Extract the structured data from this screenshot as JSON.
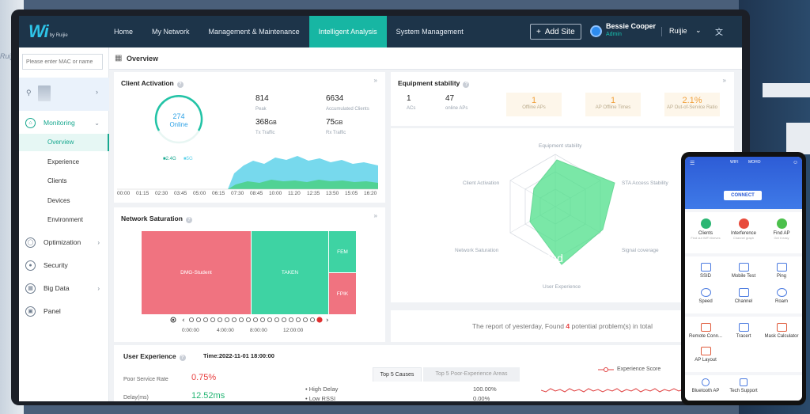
{
  "nav": {
    "logo": "Wi",
    "logo_sub": "by Ruijie",
    "items": [
      "Home",
      "My Network",
      "Management & Maintenance",
      "Intelligent Analysis",
      "System Management"
    ],
    "active_index": 3,
    "add_site": "Add Site",
    "user_name": "Bessie Cooper",
    "user_role": "Admin",
    "brand": "Ruijie"
  },
  "sidebar": {
    "search_placeholder": "Please enter MAC or name",
    "items": [
      {
        "label": "Monitoring",
        "icon": "monitor-icon"
      },
      {
        "label": "Optimization",
        "icon": "optimization-icon"
      },
      {
        "label": "Security",
        "icon": "security-icon"
      },
      {
        "label": "Big Data",
        "icon": "big-data-icon"
      },
      {
        "label": "Panel",
        "icon": "panel-icon"
      }
    ],
    "sub_items": [
      "Overview",
      "Experience",
      "Clients",
      "Devices",
      "Environment"
    ]
  },
  "page": {
    "title": "Overview"
  },
  "client_activation": {
    "title": "Client Activation",
    "online": "274",
    "online_label": "Online",
    "legend_24": "2.4G",
    "legend_5": "5G",
    "peak": "814",
    "peak_label": "Peak",
    "accumulated": "6634",
    "accumulated_label": "Accumulated Clients",
    "tx": "368",
    "tx_unit": "GB",
    "tx_label": "Tx Traffic",
    "rx": "75",
    "rx_unit": "GB",
    "rx_label": "Rx Traffic",
    "times": [
      "00:00",
      "01:15",
      "02:30",
      "03:45",
      "05:00",
      "06:15",
      "07:30",
      "08:45",
      "10:00",
      "11:20",
      "12:35",
      "13:50",
      "15:05",
      "16:20"
    ],
    "colors": {
      "g24": "#4cd08a",
      "g5": "#5fd2ea"
    }
  },
  "equipment": {
    "title": "Equipment stability",
    "acs": "1",
    "acs_label": "ACs",
    "online_aps": "47",
    "online_aps_label": "online APs",
    "boxes": [
      {
        "value": "1",
        "label": "Offline APs"
      },
      {
        "value": "1",
        "label": "AP Offline Times"
      },
      {
        "value": "2.1%",
        "label": "AP Out-of-Service Ratio"
      }
    ],
    "radar_labels": [
      "Equipment stability",
      "STA Access Stability",
      "Signal coverage",
      "User Experience",
      "Network Saturation",
      "Client Activation"
    ],
    "status": "Bad"
  },
  "saturation": {
    "title": "Network Saturation",
    "cells": [
      "DMG-Student",
      "TAKEN",
      "FEM",
      "FPIK"
    ],
    "times": [
      "0:00:00",
      "4:00:00",
      "8:00:00",
      "12:00:00"
    ],
    "colors": {
      "red": "#f07380",
      "green": "#3ed3a3"
    }
  },
  "report": {
    "prefix": "The report of yesterday, Found",
    "count": "4",
    "suffix": "potential problem(s) in total"
  },
  "user_experience": {
    "title": "User Experience",
    "time": "Time:2022-11-01 18:00:00",
    "poor_rate_label": "Poor Service Rate",
    "poor_rate": "0.75%",
    "delay_label": "Delay(ms)",
    "delay": "12.52ms",
    "tabs": [
      "Top 5 Causes",
      "Top 5 Poor-Experience Areas"
    ],
    "causes": [
      {
        "name": "High Delay",
        "value": "100.00%"
      },
      {
        "name": "Low RSSI",
        "value": "0.00%"
      }
    ],
    "legend": "Experience Score"
  },
  "phone": {
    "tab_left": "WIFI",
    "tab_right": "MOHO",
    "connect": "CONNECT",
    "row1": [
      {
        "label": "Clients",
        "sub": "Find out WiFi thieves",
        "icon": "clients-icon",
        "color": "#2bb673"
      },
      {
        "label": "Interference",
        "sub": "Channel graph",
        "icon": "interference-icon",
        "color": "#e84b3c"
      },
      {
        "label": "Find AP",
        "sub": "Get it easy",
        "icon": "find-ap-icon",
        "color": "#4cc04c"
      }
    ],
    "row2": [
      {
        "label": "SSID",
        "icon": "ssid-icon"
      },
      {
        "label": "Mobile Test",
        "icon": "mobile-test-icon"
      },
      {
        "label": "Ping",
        "icon": "ping-icon"
      }
    ],
    "row3": [
      {
        "label": "Speed",
        "icon": "speed-icon"
      },
      {
        "label": "Channel",
        "icon": "channel-icon"
      },
      {
        "label": "Roam",
        "icon": "roam-icon"
      }
    ],
    "row4": [
      {
        "label": "Remote Conn...",
        "icon": "remote-conn-icon"
      },
      {
        "label": "Tracert",
        "icon": "tracert-icon"
      },
      {
        "label": "Mask Calculator",
        "icon": "mask-calculator-icon"
      }
    ],
    "row5": [
      {
        "label": "AP Layout",
        "icon": "ap-layout-icon"
      }
    ],
    "row6": [
      {
        "label": "Bluetooth AP",
        "icon": "bluetooth-icon"
      },
      {
        "label": "Tech Support",
        "icon": "tech-support-icon"
      }
    ]
  }
}
